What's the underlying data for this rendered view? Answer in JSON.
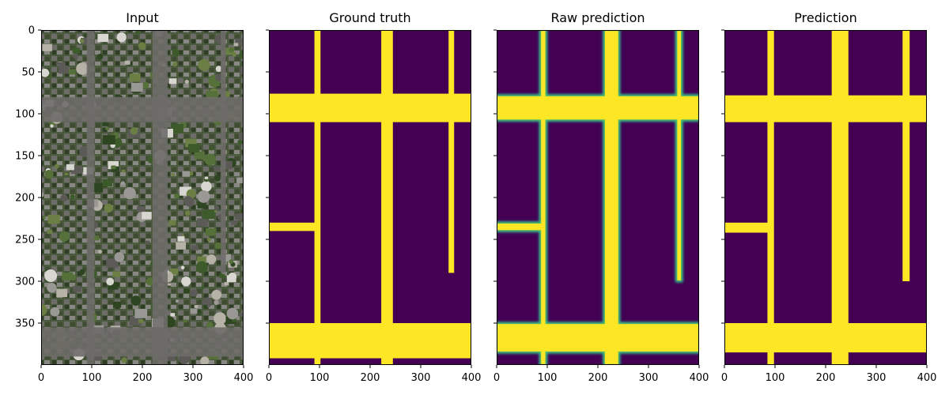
{
  "colors": {
    "background": "#440154",
    "road": "#fde725",
    "edge_teal": "#21918c",
    "edge_green": "#5ec962"
  },
  "chart_data": {
    "type": "heatmap",
    "x_ticks": [
      0,
      100,
      200,
      300,
      400
    ],
    "y_ticks": [
      0,
      50,
      100,
      150,
      200,
      250,
      300,
      350
    ],
    "xlim": [
      0,
      400
    ],
    "ylim": [
      400,
      0
    ],
    "y_labels_shown_on_first_panel_only": true,
    "panels": [
      {
        "title": "Input",
        "kind": "aerial-image",
        "colormap": "rgb",
        "road_mask": {
          "vertical": [
            {
              "x0": 90,
              "x1": 105,
              "y0": 0,
              "y1": 400
            },
            {
              "x0": 220,
              "x1": 250,
              "y0": 0,
              "y1": 400
            },
            {
              "x0": 355,
              "x1": 365,
              "y0": 0,
              "y1": 290
            }
          ],
          "horizontal": [
            {
              "x0": 0,
              "x1": 400,
              "y0": 80,
              "y1": 110
            },
            {
              "x0": 0,
              "x1": 400,
              "y0": 355,
              "y1": 390
            }
          ]
        }
      },
      {
        "title": "Ground truth",
        "kind": "binary-mask",
        "colormap": "viridis",
        "vertical": [
          {
            "x0": 90,
            "x1": 102,
            "y0": 0,
            "y1": 400
          },
          {
            "x0": 222,
            "x1": 245,
            "y0": 0,
            "y1": 400
          },
          {
            "x0": 355,
            "x1": 366,
            "y0": 0,
            "y1": 290
          }
        ],
        "horizontal": [
          {
            "x0": 0,
            "x1": 400,
            "y0": 76,
            "y1": 110
          },
          {
            "x0": 0,
            "x1": 96,
            "y0": 230,
            "y1": 240
          },
          {
            "x0": 0,
            "x1": 400,
            "y0": 350,
            "y1": 392
          }
        ]
      },
      {
        "title": "Raw prediction",
        "kind": "probability-map",
        "colormap": "viridis",
        "soft_edges": true,
        "vertical": [
          {
            "x0": 86,
            "x1": 98,
            "y0": 0,
            "y1": 400
          },
          {
            "x0": 212,
            "x1": 242,
            "y0": 0,
            "y1": 400
          },
          {
            "x0": 355,
            "x1": 366,
            "y0": 0,
            "y1": 300
          }
        ],
        "horizontal": [
          {
            "x0": 0,
            "x1": 400,
            "y0": 78,
            "y1": 108
          },
          {
            "x0": 0,
            "x1": 92,
            "y0": 230,
            "y1": 240
          },
          {
            "x0": 0,
            "x1": 400,
            "y0": 350,
            "y1": 385
          }
        ]
      },
      {
        "title": "Prediction",
        "kind": "binary-mask",
        "colormap": "viridis",
        "vertical": [
          {
            "x0": 85,
            "x1": 98,
            "y0": 0,
            "y1": 400
          },
          {
            "x0": 212,
            "x1": 245,
            "y0": 0,
            "y1": 400
          },
          {
            "x0": 352,
            "x1": 366,
            "y0": 0,
            "y1": 300
          }
        ],
        "horizontal": [
          {
            "x0": 0,
            "x1": 400,
            "y0": 78,
            "y1": 110
          },
          {
            "x0": 0,
            "x1": 90,
            "y0": 230,
            "y1": 242
          },
          {
            "x0": 0,
            "x1": 400,
            "y0": 350,
            "y1": 385
          }
        ]
      }
    ]
  }
}
